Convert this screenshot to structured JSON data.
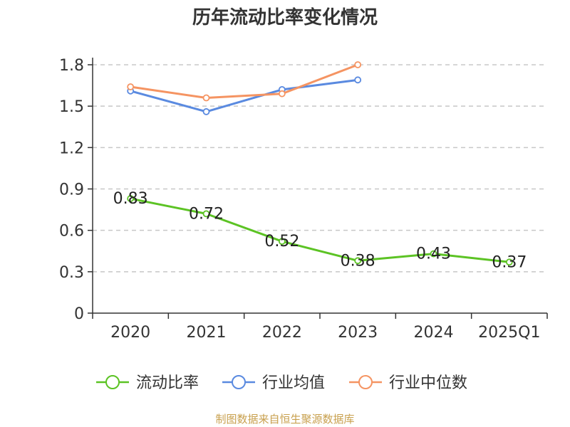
{
  "chart_data": {
    "type": "line",
    "title": "历年流动比率变化情况",
    "categories": [
      "2020",
      "2021",
      "2022",
      "2023",
      "2024",
      "2025Q1"
    ],
    "y_ticks": [
      "0",
      "0.3",
      "0.6",
      "0.9",
      "1.2",
      "1.5",
      "1.8"
    ],
    "ylim": [
      0,
      1.8
    ],
    "grid": true,
    "legend_position": "bottom",
    "series": [
      {
        "name": "流动比率",
        "color": "#5cc324",
        "values": [
          0.83,
          0.72,
          0.52,
          0.38,
          0.43,
          0.37
        ],
        "labels": [
          "0.83",
          "0.72",
          "0.52",
          "0.38",
          "0.43",
          "0.37"
        ]
      },
      {
        "name": "行业均值",
        "color": "#5a8ae0",
        "values": [
          1.61,
          1.46,
          1.62,
          1.69,
          null,
          null
        ]
      },
      {
        "name": "行业中位数",
        "color": "#f59462",
        "values": [
          1.64,
          1.56,
          1.59,
          1.8,
          null,
          null
        ]
      }
    ]
  },
  "source": "制图数据来自恒生聚源数据库"
}
